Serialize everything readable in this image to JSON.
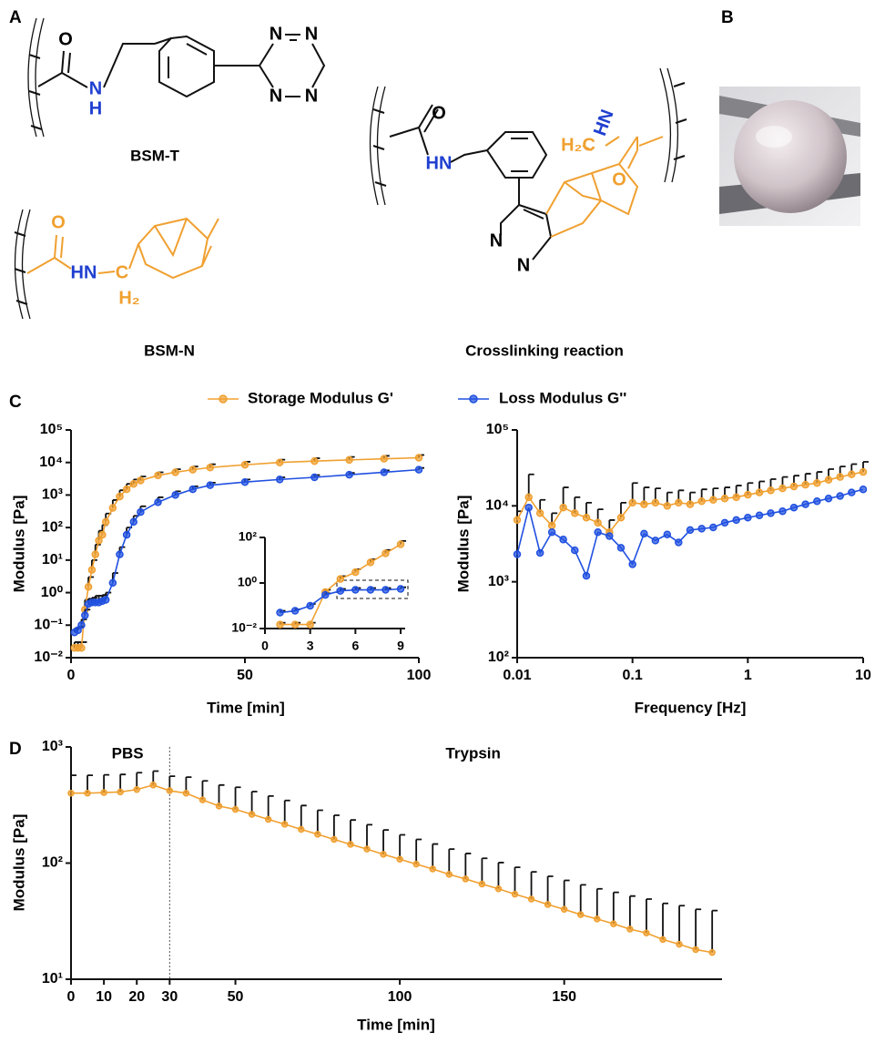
{
  "panel_labels": [
    "A",
    "B",
    "C",
    "D"
  ],
  "structures": [
    {
      "name": "BSM-T",
      "atoms": [
        "O",
        "N",
        "H",
        "N",
        "N",
        "N",
        "N"
      ]
    },
    {
      "name": "BSM-N",
      "atoms": [
        "O",
        "HN",
        "C",
        "H₂"
      ]
    },
    {
      "name": "Crosslinking reaction",
      "atoms": [
        "O",
        "HN",
        "N",
        "N",
        "HN",
        "H₂C",
        "O"
      ]
    }
  ],
  "chart_data": [
    {
      "type": "line",
      "x_label": "Time [min]",
      "y_label": "Modulus [Pa]",
      "log_y": true,
      "xlim": [
        0,
        100
      ],
      "xticks": [
        0,
        50,
        100
      ],
      "ylim": [
        0.01,
        100000
      ],
      "yticks": [
        {
          "value": 0.01,
          "label": "10⁻²"
        },
        {
          "value": 0.1,
          "label": "10⁻¹"
        },
        {
          "value": 1,
          "label": "10⁰"
        },
        {
          "value": 10,
          "label": "10¹"
        },
        {
          "value": 100,
          "label": "10²"
        },
        {
          "value": 1000,
          "label": "10³"
        },
        {
          "value": 10000,
          "label": "10⁴"
        },
        {
          "value": 100000,
          "label": "10⁵"
        }
      ],
      "x": [
        1,
        2,
        3,
        4,
        5,
        6,
        7,
        8,
        9,
        10,
        12,
        14,
        16,
        18,
        20,
        25,
        30,
        35,
        40,
        50,
        60,
        70,
        80,
        90,
        100
      ],
      "series": [
        {
          "name": "Storage Modulus G'",
          "color": "#f0a030",
          "values": [
            0.02,
            0.02,
            0.02,
            0.3,
            1.5,
            5,
            15,
            40,
            60,
            150,
            400,
            900,
            1500,
            2200,
            2800,
            4000,
            5000,
            6000,
            7000,
            8500,
            10000,
            11000,
            12000,
            13000,
            14000
          ],
          "errors": [
            0.01,
            0.01,
            0.01,
            0.3,
            1.5,
            5,
            15,
            40,
            60,
            120,
            300,
            500,
            700,
            800,
            900,
            1000,
            1200,
            1500,
            1800,
            2000,
            2200,
            2500,
            2800,
            3000,
            3000
          ]
        },
        {
          "name": "Loss Modulus G''",
          "color": "#2050e0",
          "values": [
            0.06,
            0.07,
            0.1,
            0.2,
            0.45,
            0.5,
            0.5,
            0.5,
            0.55,
            0.6,
            2,
            15,
            60,
            150,
            300,
            600,
            1000,
            1500,
            2000,
            2500,
            3000,
            3500,
            4200,
            5000,
            6000
          ],
          "errors": [
            0.02,
            0.02,
            0.05,
            0.1,
            0.2,
            0.2,
            0.3,
            0.3,
            0.3,
            0.4,
            2,
            10,
            40,
            80,
            150,
            250,
            300,
            350,
            400,
            500,
            500,
            600,
            600,
            700,
            800
          ]
        }
      ]
    },
    {
      "type": "line",
      "log_y": true,
      "xlim": [
        0,
        9.3
      ],
      "xticks": [
        0,
        3,
        6,
        9
      ],
      "ylim": [
        0.01,
        100
      ],
      "yticks": [
        {
          "value": 0.01,
          "label": "10⁻²"
        },
        {
          "value": 1,
          "label": "10⁰"
        },
        {
          "value": 100,
          "label": "10²"
        }
      ],
      "x": [
        1,
        2,
        3,
        4,
        5,
        6,
        7,
        8,
        9
      ],
      "series": [
        {
          "color": "#f0a030",
          "values": [
            0.015,
            0.015,
            0.015,
            0.4,
            1.5,
            3,
            8,
            20,
            50
          ],
          "errors": [
            0.003,
            0.003,
            0.003,
            0.1,
            0.5,
            1,
            3,
            8,
            20
          ]
        },
        {
          "color": "#2050e0",
          "values": [
            0.05,
            0.06,
            0.1,
            0.3,
            0.45,
            0.5,
            0.5,
            0.5,
            0.55
          ],
          "errors": [
            0.01,
            0.01,
            0.02,
            0.05,
            0.1,
            0.1,
            0.1,
            0.1,
            0.1
          ]
        }
      ]
    },
    {
      "type": "line",
      "x_label": "Frequency [Hz]",
      "y_label": "Modulus [Pa]",
      "log_x": true,
      "log_y": true,
      "xlim": [
        0.01,
        10
      ],
      "xticks": [
        0.01,
        0.1,
        1,
        10
      ],
      "ylim": [
        100,
        100000
      ],
      "yticks": [
        {
          "value": 100,
          "label": "10²"
        },
        {
          "value": 1000,
          "label": "10³"
        },
        {
          "value": 10000,
          "label": "10⁴"
        },
        {
          "value": 100000,
          "label": "10⁵"
        }
      ],
      "x": [
        0.01,
        0.0126,
        0.0158,
        0.02,
        0.0251,
        0.0316,
        0.0398,
        0.0501,
        0.0631,
        0.0794,
        0.1,
        0.126,
        0.158,
        0.2,
        0.251,
        0.316,
        0.398,
        0.501,
        0.631,
        0.794,
        1,
        1.26,
        1.58,
        2,
        2.51,
        3.16,
        3.98,
        5.01,
        6.31,
        7.94,
        10
      ],
      "series": [
        {
          "name": "Storage Modulus G'",
          "color": "#f0a030",
          "values": [
            6500,
            13000,
            8000,
            5500,
            9500,
            8000,
            7000,
            6000,
            4500,
            7000,
            11000,
            10500,
            11000,
            10000,
            11000,
            10500,
            11500,
            12000,
            12500,
            13000,
            14000,
            15000,
            16000,
            17000,
            18000,
            19000,
            20000,
            22000,
            24000,
            26000,
            28000
          ],
          "errors": [
            2000,
            13000,
            4000,
            2500,
            8000,
            5000,
            4000,
            3000,
            2000,
            4000,
            9000,
            7000,
            6000,
            5000,
            5000,
            4500,
            5000,
            5000,
            5000,
            5500,
            6000,
            6000,
            6500,
            7000,
            7000,
            7500,
            8000,
            8500,
            9000,
            9500,
            10000
          ]
        },
        {
          "name": "Loss Modulus G''",
          "color": "#2050e0",
          "values": [
            2300,
            9500,
            2400,
            4500,
            3600,
            2600,
            1200,
            4500,
            4000,
            2800,
            1700,
            4300,
            3500,
            4200,
            3300,
            4800,
            5000,
            5200,
            6000,
            6500,
            7000,
            7500,
            8000,
            8500,
            9500,
            10500,
            11500,
            12500,
            13500,
            15000,
            16500
          ]
        }
      ]
    },
    {
      "type": "line",
      "x_label": "Time [min]",
      "y_label": "Modulus [Pa]",
      "log_y": true,
      "phases": [
        "PBS",
        "Trypsin"
      ],
      "phase_boundary": 30,
      "xlim": [
        0,
        198
      ],
      "xticks": [
        0,
        10,
        20,
        30,
        50,
        100,
        150
      ],
      "ylim": [
        10,
        1000
      ],
      "yticks": [
        {
          "value": 10,
          "label": "10¹"
        },
        {
          "value": 100,
          "label": "10²"
        },
        {
          "value": 1000,
          "label": "10³"
        }
      ],
      "x": [
        0,
        5,
        10,
        15,
        20,
        25,
        30,
        35,
        40,
        45,
        50,
        55,
        60,
        65,
        70,
        75,
        80,
        85,
        90,
        95,
        100,
        105,
        110,
        115,
        120,
        125,
        130,
        135,
        140,
        145,
        150,
        155,
        160,
        165,
        170,
        175,
        180,
        185,
        190,
        195
      ],
      "series": [
        {
          "color": "#f0a030",
          "values": [
            400,
            400,
            405,
            410,
            430,
            470,
            420,
            400,
            350,
            310,
            290,
            263,
            238,
            216,
            195,
            177,
            160,
            145,
            132,
            119,
            108,
            98,
            89,
            80,
            73,
            66,
            60,
            54,
            49,
            44,
            40,
            36,
            33,
            30,
            27,
            25,
            22,
            20,
            18,
            17
          ],
          "errors": [
            170,
            170,
            170,
            170,
            170,
            150,
            140,
            150,
            160,
            160,
            160,
            150,
            140,
            130,
            118,
            108,
            98,
            90,
            82,
            74,
            67,
            62,
            57,
            52,
            48,
            44,
            41,
            38,
            35,
            33,
            31,
            29,
            27,
            26,
            25,
            24,
            23,
            23,
            22,
            22
          ]
        }
      ]
    }
  ]
}
